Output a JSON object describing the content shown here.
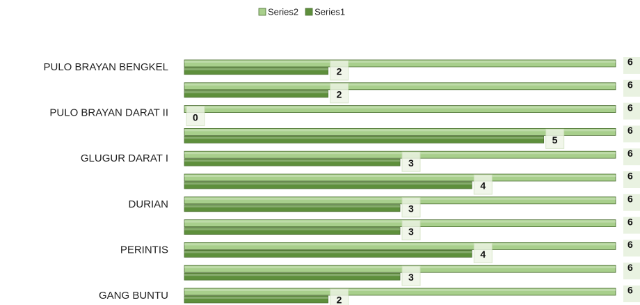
{
  "chart_data": {
    "type": "bar",
    "orientation": "horizontal",
    "legend": "top",
    "categories": [
      "PULO BRAYAN BENGKEL",
      null,
      "PULO BRAYAN DARAT II",
      null,
      "GLUGUR DARAT I",
      null,
      "DURIAN",
      null,
      "PERINTIS",
      null,
      "GANG BUNTU"
    ],
    "series": [
      {
        "name": "Series2",
        "color": "#a8cf8c",
        "values": [
          6,
          6,
          6,
          6,
          6,
          6,
          6,
          6,
          6,
          6,
          6
        ]
      },
      {
        "name": "Series1",
        "color": "#5e8f3c",
        "values": [
          2,
          2,
          0,
          5,
          3,
          4,
          3,
          3,
          4,
          3,
          2
        ]
      }
    ],
    "xlim": [
      0,
      6
    ]
  }
}
